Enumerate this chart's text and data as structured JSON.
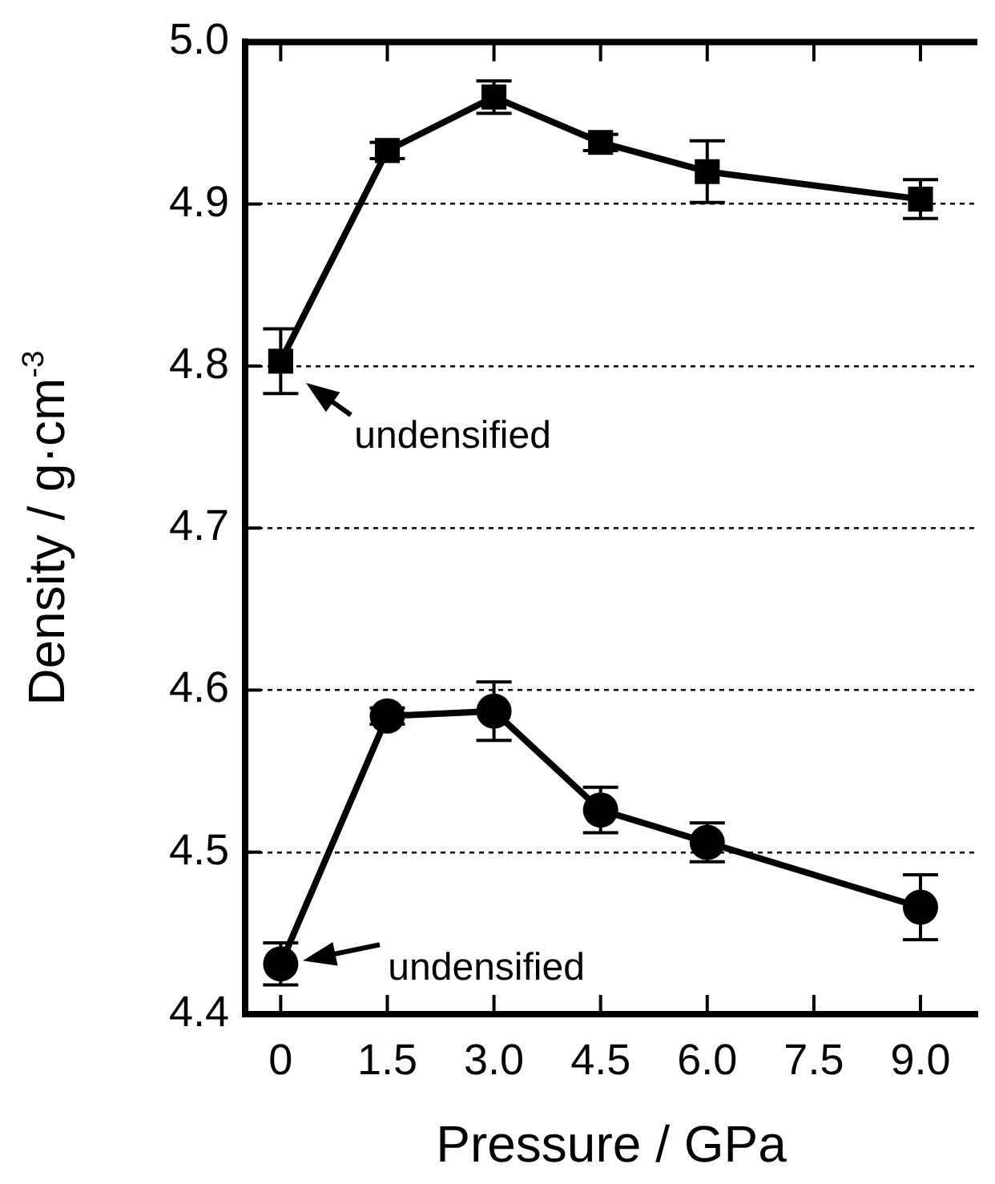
{
  "chart_data": {
    "type": "line",
    "xlabel": "Pressure / GPa",
    "ylabel": "Density / g·cm$^{-3}$",
    "x": [
      0,
      1.5,
      3.0,
      4.5,
      6.0,
      9.0
    ],
    "series": [
      {
        "color": "#000000",
        "marker": "square",
        "values": [
          4.803,
          4.933,
          4.966,
          4.938,
          4.92,
          4.903
        ],
        "errors": [
          0.02,
          0.005,
          0.01,
          0.005,
          0.019,
          0.012
        ]
      },
      {
        "color": "#000000",
        "marker": "circle",
        "values": [
          4.431,
          4.584,
          4.587,
          4.526,
          4.506,
          4.466
        ],
        "errors": [
          0.013,
          0.005,
          0.018,
          0.014,
          0.012,
          0.02
        ]
      }
    ],
    "xlim": [
      -0.5,
      9.8
    ],
    "xticks": [
      {
        "value": 0,
        "label": "0"
      },
      1.5,
      {
        "value": 3,
        "label": "3.0"
      },
      4.5,
      {
        "value": 6,
        "label": "6.0"
      },
      7.5,
      {
        "value": 9,
        "label": "9.0"
      }
    ],
    "ylim": [
      4.4,
      5.0
    ],
    "yticks": [
      4.4,
      4.5,
      4.6,
      4.7,
      4.8,
      4.9,
      {
        "value": 5,
        "label": "5.0"
      }
    ],
    "grid": "y",
    "legend": false,
    "line_style": "solid",
    "annotations": [
      {
        "text": "undensified",
        "x": 0,
        "y": 4.803
      },
      {
        "text": "undensified",
        "x": 0,
        "y": 4.431
      }
    ]
  }
}
